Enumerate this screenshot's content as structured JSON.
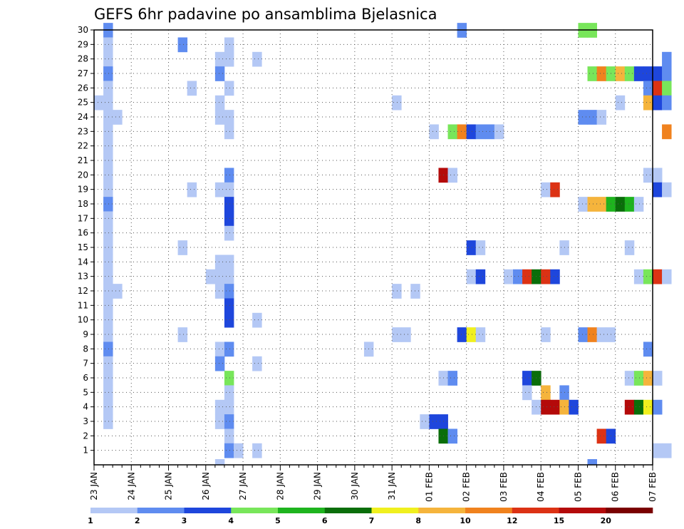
{
  "chart_data": {
    "type": "heatmap",
    "title": "GEFS 6hr padavine po ansamblima Bjelasnica",
    "x_tick_labels": [
      "23 JAN",
      "24 JAN",
      "25 JAN",
      "26 JAN",
      "27 JAN",
      "28 JAN",
      "29 JAN",
      "30 JAN",
      "31 JAN",
      "01 FEB",
      "02 FEB",
      "03 FEB",
      "04 FEB",
      "05 FEB",
      "06 FEB",
      "07 FEB"
    ],
    "y_tick_labels": [
      "1",
      "2",
      "3",
      "4",
      "5",
      "6",
      "7",
      "8",
      "9",
      "10",
      "11",
      "12",
      "13",
      "14",
      "15",
      "16",
      "17",
      "18",
      "19",
      "20",
      "21",
      "22",
      "23",
      "24",
      "25",
      "26",
      "27",
      "28",
      "29",
      "30"
    ],
    "x_range_steps": [
      0,
      60
    ],
    "y_range": [
      0,
      30
    ],
    "grid": true,
    "colorbar": {
      "position": "bottom",
      "tick_labels": [
        "1",
        "2",
        "3",
        "4",
        "5",
        "6",
        "7",
        "8",
        "10",
        "12",
        "15",
        "20"
      ],
      "colors": [
        "#b4c8f5",
        "#5f8cf0",
        "#1e46dc",
        "#78e65a",
        "#1eb41e",
        "#0a6e0a",
        "#f0f01e",
        "#f5b43c",
        "#f0821e",
        "#dc3214",
        "#b40a0a",
        "#7a0000"
      ]
    },
    "levels": {
      "1": "#b4c8f5",
      "2": "#5f8cf0",
      "3": "#1e46dc",
      "4": "#78e65a",
      "5": "#1eb41e",
      "6": "#0a6e0a",
      "7": "#f0f01e",
      "8": "#f5b43c",
      "9": "#f0821e",
      "10": "#dc3214",
      "11": "#b40a0a"
    },
    "cells": [
      [
        1,
        30,
        2
      ],
      [
        1,
        29,
        1
      ],
      [
        1,
        28,
        1
      ],
      [
        1,
        27,
        2
      ],
      [
        1,
        26,
        1
      ],
      [
        1,
        25,
        1
      ],
      [
        1,
        24,
        1
      ],
      [
        1,
        23,
        1
      ],
      [
        1,
        22,
        1
      ],
      [
        1,
        21,
        1
      ],
      [
        1,
        20,
        1
      ],
      [
        1,
        19,
        1
      ],
      [
        1,
        18,
        2
      ],
      [
        1,
        17,
        1
      ],
      [
        1,
        16,
        1
      ],
      [
        1,
        15,
        1
      ],
      [
        1,
        14,
        1
      ],
      [
        1,
        13,
        1
      ],
      [
        1,
        12,
        1
      ],
      [
        1,
        11,
        1
      ],
      [
        1,
        10,
        1
      ],
      [
        1,
        9,
        1
      ],
      [
        1,
        8,
        2
      ],
      [
        1,
        7,
        1
      ],
      [
        1,
        6,
        1
      ],
      [
        1,
        5,
        1
      ],
      [
        1,
        4,
        1
      ],
      [
        1,
        3,
        1
      ],
      [
        0,
        25,
        1
      ],
      [
        2,
        24,
        1
      ],
      [
        2,
        12,
        1
      ],
      [
        9,
        29,
        2
      ],
      [
        10,
        26,
        1
      ],
      [
        9,
        15,
        1
      ],
      [
        10,
        19,
        1
      ],
      [
        9,
        9,
        1
      ],
      [
        13,
        28,
        1
      ],
      [
        13,
        27,
        2
      ],
      [
        13,
        25,
        1
      ],
      [
        13,
        24,
        1
      ],
      [
        13,
        19,
        1
      ],
      [
        13,
        14,
        1
      ],
      [
        12,
        13,
        1
      ],
      [
        13,
        13,
        1
      ],
      [
        13,
        12,
        1
      ],
      [
        13,
        8,
        1
      ],
      [
        13,
        7,
        2
      ],
      [
        13,
        4,
        1
      ],
      [
        13,
        3,
        1
      ],
      [
        13,
        0,
        1
      ],
      [
        14,
        29,
        1
      ],
      [
        14,
        28,
        1
      ],
      [
        14,
        26,
        1
      ],
      [
        14,
        24,
        1
      ],
      [
        14,
        23,
        1
      ],
      [
        14,
        20,
        2
      ],
      [
        14,
        19,
        1
      ],
      [
        14,
        18,
        3
      ],
      [
        14,
        17,
        3
      ],
      [
        14,
        16,
        1
      ],
      [
        14,
        14,
        1
      ],
      [
        14,
        13,
        1
      ],
      [
        14,
        12,
        2
      ],
      [
        14,
        11,
        3
      ],
      [
        14,
        10,
        3
      ],
      [
        14,
        8,
        2
      ],
      [
        14,
        6,
        4
      ],
      [
        14,
        5,
        1
      ],
      [
        14,
        4,
        1
      ],
      [
        14,
        3,
        2
      ],
      [
        14,
        2,
        1
      ],
      [
        14,
        1,
        2
      ],
      [
        15,
        1,
        1
      ],
      [
        17,
        28,
        1
      ],
      [
        17,
        10,
        1
      ],
      [
        17,
        7,
        1
      ],
      [
        17,
        1,
        1
      ],
      [
        29,
        8,
        1
      ],
      [
        32,
        25,
        1
      ],
      [
        32,
        12,
        1
      ],
      [
        32,
        9,
        1
      ],
      [
        33,
        9,
        1
      ],
      [
        34,
        12,
        1
      ],
      [
        35,
        3,
        1
      ],
      [
        36,
        3,
        3
      ],
      [
        37,
        3,
        3
      ],
      [
        36,
        23,
        1
      ],
      [
        37,
        20,
        11
      ],
      [
        38,
        20,
        1
      ],
      [
        37,
        2,
        6
      ],
      [
        38,
        2,
        2
      ],
      [
        37,
        6,
        1
      ],
      [
        38,
        6,
        2
      ],
      [
        38,
        23,
        4
      ],
      [
        39,
        23,
        9
      ],
      [
        40,
        23,
        3
      ],
      [
        41,
        23,
        2
      ],
      [
        42,
        23,
        2
      ],
      [
        43,
        23,
        1
      ],
      [
        39,
        30,
        2
      ],
      [
        40,
        15,
        3
      ],
      [
        41,
        15,
        1
      ],
      [
        40,
        13,
        1
      ],
      [
        41,
        13,
        3
      ],
      [
        39,
        9,
        3
      ],
      [
        40,
        9,
        7
      ],
      [
        41,
        9,
        1
      ],
      [
        44,
        13,
        1
      ],
      [
        45,
        13,
        2
      ],
      [
        46,
        13,
        10
      ],
      [
        47,
        13,
        6
      ],
      [
        48,
        13,
        10
      ],
      [
        49,
        13,
        3
      ],
      [
        46,
        6,
        3
      ],
      [
        47,
        6,
        6
      ],
      [
        46,
        5,
        1
      ],
      [
        48,
        5,
        8
      ],
      [
        47,
        4,
        1
      ],
      [
        48,
        4,
        11
      ],
      [
        49,
        4,
        11
      ],
      [
        48,
        19,
        1
      ],
      [
        49,
        19,
        10
      ],
      [
        48,
        9,
        1
      ],
      [
        50,
        5,
        2
      ],
      [
        50,
        4,
        8
      ],
      [
        51,
        4,
        3
      ],
      [
        50,
        15,
        1
      ],
      [
        52,
        30,
        4
      ],
      [
        53,
        30,
        4
      ],
      [
        52,
        24,
        2
      ],
      [
        53,
        24,
        2
      ],
      [
        54,
        24,
        1
      ],
      [
        52,
        18,
        1
      ],
      [
        53,
        18,
        8
      ],
      [
        54,
        18,
        8
      ],
      [
        55,
        18,
        5
      ],
      [
        56,
        18,
        6
      ],
      [
        57,
        18,
        5
      ],
      [
        58,
        18,
        1
      ],
      [
        52,
        9,
        2
      ],
      [
        53,
        9,
        9
      ],
      [
        54,
        9,
        1
      ],
      [
        55,
        9,
        1
      ],
      [
        53,
        0,
        2
      ],
      [
        54,
        2,
        10
      ],
      [
        55,
        2,
        3
      ],
      [
        53,
        27,
        4
      ],
      [
        54,
        27,
        9
      ],
      [
        55,
        27,
        4
      ],
      [
        56,
        27,
        8
      ],
      [
        57,
        27,
        4
      ],
      [
        58,
        27,
        3
      ],
      [
        59,
        27,
        3
      ],
      [
        60,
        27,
        3
      ],
      [
        61,
        27,
        2
      ],
      [
        56,
        25,
        1
      ],
      [
        57,
        15,
        1
      ],
      [
        57,
        6,
        1
      ],
      [
        57,
        4,
        11
      ],
      [
        58,
        4,
        6
      ],
      [
        59,
        4,
        7
      ],
      [
        60,
        4,
        2
      ],
      [
        58,
        13,
        1
      ],
      [
        59,
        13,
        4
      ],
      [
        60,
        13,
        10
      ],
      [
        61,
        13,
        1
      ],
      [
        58,
        6,
        4
      ],
      [
        59,
        6,
        8
      ],
      [
        60,
        6,
        1
      ],
      [
        59,
        26,
        2
      ],
      [
        60,
        26,
        10
      ],
      [
        61,
        26,
        4
      ],
      [
        59,
        25,
        8
      ],
      [
        60,
        25,
        3
      ],
      [
        61,
        25,
        2
      ],
      [
        59,
        20,
        1
      ],
      [
        60,
        20,
        1
      ],
      [
        60,
        19,
        3
      ],
      [
        61,
        19,
        1
      ],
      [
        61,
        23,
        9
      ],
      [
        59,
        8,
        2
      ],
      [
        60,
        1,
        1
      ],
      [
        61,
        1,
        1
      ],
      [
        61,
        28,
        2
      ]
    ]
  }
}
